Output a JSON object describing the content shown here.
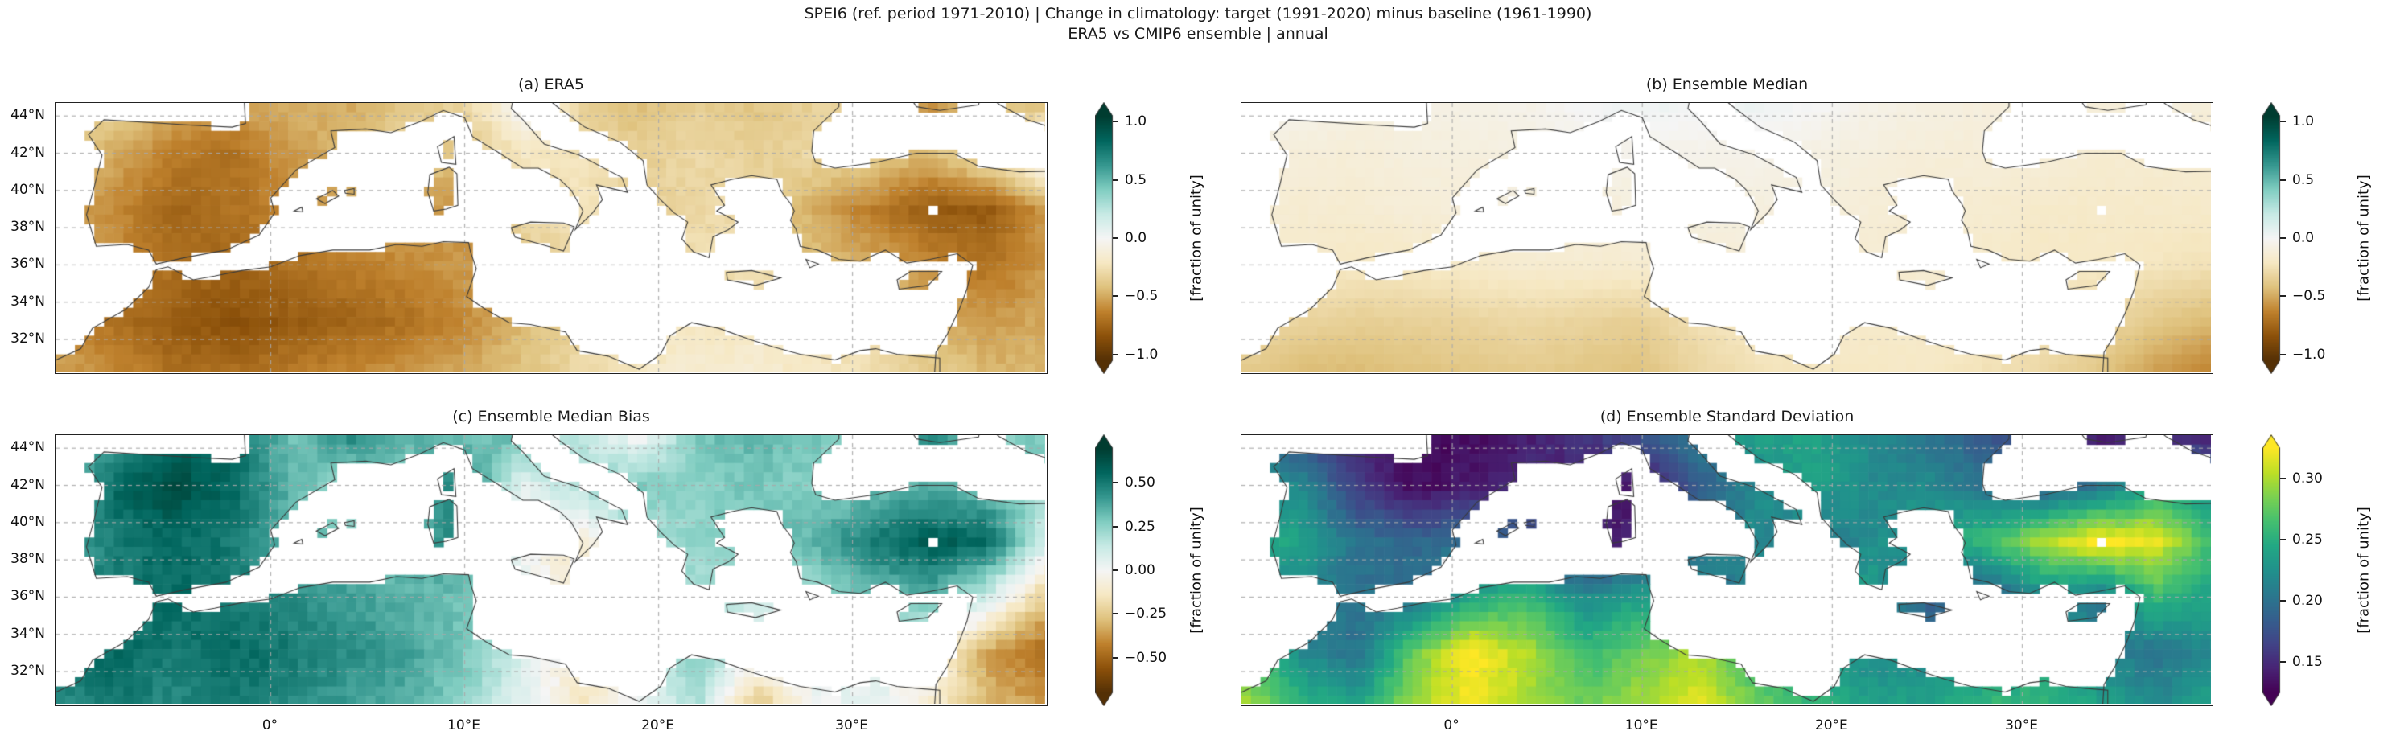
{
  "figure": {
    "suptitle_line1": "SPEI6 (ref. period 1971-2010) | Change in climatology: target (1991-2020) minus baseline (1961-1990)",
    "suptitle_line2": "ERA5 vs CMIP6 ensemble | annual"
  },
  "colors": {
    "background": "#ffffff",
    "text": "#1a1a1a",
    "spine": "#222222",
    "coastline": "#3a3a3a",
    "gridline": "#aaaaaa",
    "BrBG_stops": [
      "#543005",
      "#8c510a",
      "#bf812d",
      "#dfc27d",
      "#f6e8c3",
      "#f5f5f5",
      "#c7eae5",
      "#80cdc1",
      "#35978f",
      "#01665e",
      "#003c30"
    ],
    "viridis_stops": [
      "#440154",
      "#482475",
      "#414487",
      "#355f8d",
      "#2a788e",
      "#21918c",
      "#22a884",
      "#44bf70",
      "#7ad151",
      "#bddf26",
      "#fde725"
    ]
  },
  "chart_data": {
    "type": "heatmap",
    "subtype": "geographic map grid (Mediterranean, PlateCarree)",
    "extent": {
      "lon_min": -11.1,
      "lon_max": 40.1,
      "lat_min": 30.1,
      "lat_max": 44.7
    },
    "grid": true,
    "xticks": {
      "lons": [
        0,
        10,
        20,
        30
      ],
      "labels": [
        "0°",
        "10°E",
        "20°E",
        "30°E"
      ]
    },
    "yticks": {
      "lats": [
        44,
        42,
        40,
        38,
        36,
        34,
        32
      ],
      "labels": [
        "44°N",
        "42°N",
        "40°N",
        "38°N",
        "36°N",
        "34°N",
        "32°N"
      ]
    },
    "grid_lons": [
      -11,
      -8,
      -5,
      -2,
      1,
      4,
      7,
      10,
      13,
      16,
      19,
      22,
      25,
      28,
      31,
      34,
      37,
      40
    ],
    "grid_lats": [
      45,
      42,
      39,
      36,
      33,
      30
    ],
    "panels": [
      {
        "id": "a",
        "title": "(a) ERA5",
        "cmap": "BrBG",
        "vmin": -1.05,
        "vmax": 1.05,
        "show_ytick_labels": true,
        "show_xtick_labels": false,
        "colorbar": {
          "ticks": [
            1.0,
            0.5,
            0.0,
            -0.5,
            -1.0
          ],
          "tick_labels": [
            "1.0",
            "0.5",
            "0.0",
            "−0.5",
            "−1.0"
          ],
          "label": "[fraction of unity]",
          "extend": "both"
        },
        "values": [
          [
            -0.25,
            -0.3,
            -0.45,
            -0.5,
            -0.45,
            -0.5,
            -0.4,
            -0.3,
            0.05,
            -0.35,
            -0.45,
            -0.35,
            -0.4,
            -0.35,
            -0.3,
            -0.6,
            -0.45,
            -0.5
          ],
          [
            -0.35,
            -0.5,
            -0.65,
            -0.7,
            -0.55,
            -0.45,
            -0.3,
            -0.45,
            -0.2,
            -0.25,
            -0.35,
            -0.3,
            -0.35,
            -0.3,
            -0.35,
            -0.45,
            -0.2,
            0.1
          ],
          [
            -0.5,
            -0.6,
            -0.75,
            -0.7,
            -0.6,
            -0.5,
            -0.5,
            -0.6,
            -0.25,
            -0.2,
            -0.35,
            -0.3,
            -0.3,
            -0.5,
            -0.65,
            -0.8,
            -0.8,
            -0.55
          ],
          [
            -0.55,
            -0.6,
            -0.7,
            -0.75,
            -0.7,
            -0.65,
            -0.6,
            -0.55,
            -0.4,
            -0.35,
            -0.25,
            -0.25,
            -0.3,
            -0.4,
            -0.5,
            -0.6,
            -0.7,
            -0.55
          ],
          [
            -0.6,
            -0.7,
            -0.8,
            -0.85,
            -0.8,
            -0.75,
            -0.7,
            -0.6,
            -0.45,
            -0.3,
            -0.25,
            -0.2,
            -0.2,
            -0.25,
            -0.3,
            -0.45,
            -0.55,
            -0.5
          ],
          [
            -0.5,
            -0.6,
            -0.7,
            -0.7,
            -0.65,
            -0.6,
            -0.55,
            -0.5,
            -0.4,
            -0.3,
            -0.2,
            -0.15,
            -0.15,
            -0.2,
            -0.25,
            -0.35,
            -0.45,
            -0.45
          ]
        ]
      },
      {
        "id": "b",
        "title": "(b) Ensemble Median",
        "cmap": "BrBG",
        "vmin": -1.05,
        "vmax": 1.05,
        "show_ytick_labels": false,
        "show_xtick_labels": false,
        "colorbar": {
          "ticks": [
            1.0,
            0.5,
            0.0,
            -0.5,
            -1.0
          ],
          "tick_labels": [
            "1.0",
            "0.5",
            "0.0",
            "−0.5",
            "−1.0"
          ],
          "label": "[fraction of unity]",
          "extend": "both"
        },
        "values": [
          [
            0.02,
            -0.02,
            -0.08,
            -0.08,
            -0.06,
            -0.05,
            0.02,
            0.05,
            0.03,
            0.05,
            0.02,
            -0.05,
            -0.08,
            -0.1,
            -0.1,
            -0.12,
            -0.1,
            -0.1
          ],
          [
            -0.1,
            -0.12,
            -0.12,
            -0.1,
            -0.1,
            -0.08,
            -0.05,
            -0.05,
            -0.05,
            -0.05,
            -0.08,
            -0.1,
            -0.12,
            -0.12,
            -0.12,
            -0.15,
            -0.15,
            -0.15
          ],
          [
            -0.12,
            -0.15,
            -0.15,
            -0.12,
            -0.12,
            -0.1,
            -0.12,
            -0.1,
            -0.08,
            -0.1,
            -0.1,
            -0.12,
            -0.15,
            -0.15,
            -0.18,
            -0.18,
            -0.18,
            -0.18
          ],
          [
            -0.15,
            -0.18,
            -0.2,
            -0.2,
            -0.18,
            -0.15,
            -0.15,
            -0.15,
            -0.12,
            -0.12,
            -0.12,
            -0.15,
            -0.15,
            -0.18,
            -0.2,
            -0.2,
            -0.22,
            -0.25
          ],
          [
            -0.28,
            -0.32,
            -0.35,
            -0.34,
            -0.32,
            -0.3,
            -0.33,
            -0.35,
            -0.25,
            -0.2,
            -0.18,
            -0.18,
            -0.18,
            -0.2,
            -0.25,
            -0.3,
            -0.38,
            -0.45
          ],
          [
            -0.38,
            -0.45,
            -0.45,
            -0.42,
            -0.4,
            -0.38,
            -0.4,
            -0.42,
            -0.32,
            -0.25,
            -0.22,
            -0.2,
            -0.2,
            -0.25,
            -0.3,
            -0.4,
            -0.55,
            -0.65
          ]
        ]
      },
      {
        "id": "c",
        "title": "(c) Ensemble Median Bias",
        "cmap": "BrBG",
        "vmin": -0.7,
        "vmax": 0.7,
        "show_ytick_labels": true,
        "show_xtick_labels": true,
        "colorbar": {
          "ticks": [
            0.5,
            0.25,
            0.0,
            -0.25,
            -0.5
          ],
          "tick_labels": [
            "0.50",
            "0.25",
            "0.00",
            "−0.25",
            "−0.50"
          ],
          "label": "[fraction of unity]",
          "extend": "both"
        },
        "values": [
          [
            0.2,
            0.35,
            0.5,
            0.55,
            0.3,
            0.5,
            0.35,
            0.3,
            0.35,
            0.15,
            -0.05,
            0.3,
            0.35,
            0.3,
            0.3,
            0.5,
            0.25,
            0.3
          ],
          [
            0.3,
            0.55,
            0.65,
            0.55,
            0.35,
            0.2,
            0.3,
            0.5,
            0.05,
            0.2,
            0.3,
            0.25,
            0.3,
            0.25,
            0.3,
            0.35,
            0.3,
            0.2
          ],
          [
            0.35,
            0.5,
            0.55,
            0.5,
            0.35,
            0.3,
            0.3,
            0.5,
            0.0,
            -0.1,
            0.15,
            0.25,
            0.3,
            0.35,
            0.5,
            0.6,
            0.55,
            0.1
          ],
          [
            0.4,
            0.5,
            0.55,
            0.5,
            0.45,
            0.4,
            0.35,
            0.3,
            0.05,
            -0.15,
            0.1,
            0.2,
            0.1,
            0.2,
            0.3,
            0.35,
            0.1,
            -0.25
          ],
          [
            0.5,
            0.55,
            0.5,
            0.55,
            0.5,
            0.45,
            0.4,
            0.3,
            0.1,
            -0.1,
            0.05,
            0.3,
            0.05,
            0.05,
            0.1,
            0.0,
            -0.35,
            -0.5
          ],
          [
            0.45,
            0.5,
            0.45,
            0.5,
            0.45,
            0.4,
            0.35,
            0.25,
            0.05,
            -0.15,
            0.0,
            0.2,
            -0.3,
            0.0,
            0.05,
            -0.1,
            -0.3,
            -0.35
          ]
        ]
      },
      {
        "id": "d",
        "title": "(d) Ensemble Standard Deviation",
        "cmap": "viridis",
        "vmin": 0.125,
        "vmax": 0.325,
        "show_ytick_labels": false,
        "show_xtick_labels": true,
        "colorbar": {
          "ticks": [
            0.3,
            0.25,
            0.2,
            0.15
          ],
          "tick_labels": [
            "0.30",
            "0.25",
            "0.20",
            "0.15"
          ],
          "label": "[fraction of unity]",
          "extend": "both"
        },
        "values": [
          [
            0.2,
            0.16,
            0.14,
            0.13,
            0.13,
            0.14,
            0.16,
            0.18,
            0.22,
            0.24,
            0.24,
            0.22,
            0.2,
            0.18,
            0.16,
            0.13,
            0.13,
            0.13
          ],
          [
            0.23,
            0.22,
            0.16,
            0.13,
            0.14,
            0.15,
            0.14,
            0.13,
            0.18,
            0.22,
            0.24,
            0.22,
            0.22,
            0.2,
            0.18,
            0.2,
            0.24,
            0.22
          ],
          [
            0.25,
            0.24,
            0.2,
            0.19,
            0.2,
            0.18,
            0.14,
            0.15,
            0.2,
            0.22,
            0.2,
            0.22,
            0.24,
            0.26,
            0.3,
            0.33,
            0.32,
            0.26
          ],
          [
            0.23,
            0.21,
            0.2,
            0.2,
            0.24,
            0.26,
            0.22,
            0.24,
            0.22,
            0.2,
            0.22,
            0.24,
            0.18,
            0.18,
            0.22,
            0.2,
            0.26,
            0.24
          ],
          [
            0.28,
            0.22,
            0.2,
            0.28,
            0.33,
            0.3,
            0.26,
            0.28,
            0.3,
            0.26,
            0.24,
            0.22,
            0.22,
            0.22,
            0.24,
            0.22,
            0.2,
            0.22
          ],
          [
            0.3,
            0.26,
            0.24,
            0.3,
            0.32,
            0.3,
            0.28,
            0.3,
            0.32,
            0.28,
            0.26,
            0.24,
            0.24,
            0.26,
            0.26,
            0.24,
            0.22,
            0.24
          ]
        ]
      }
    ]
  }
}
